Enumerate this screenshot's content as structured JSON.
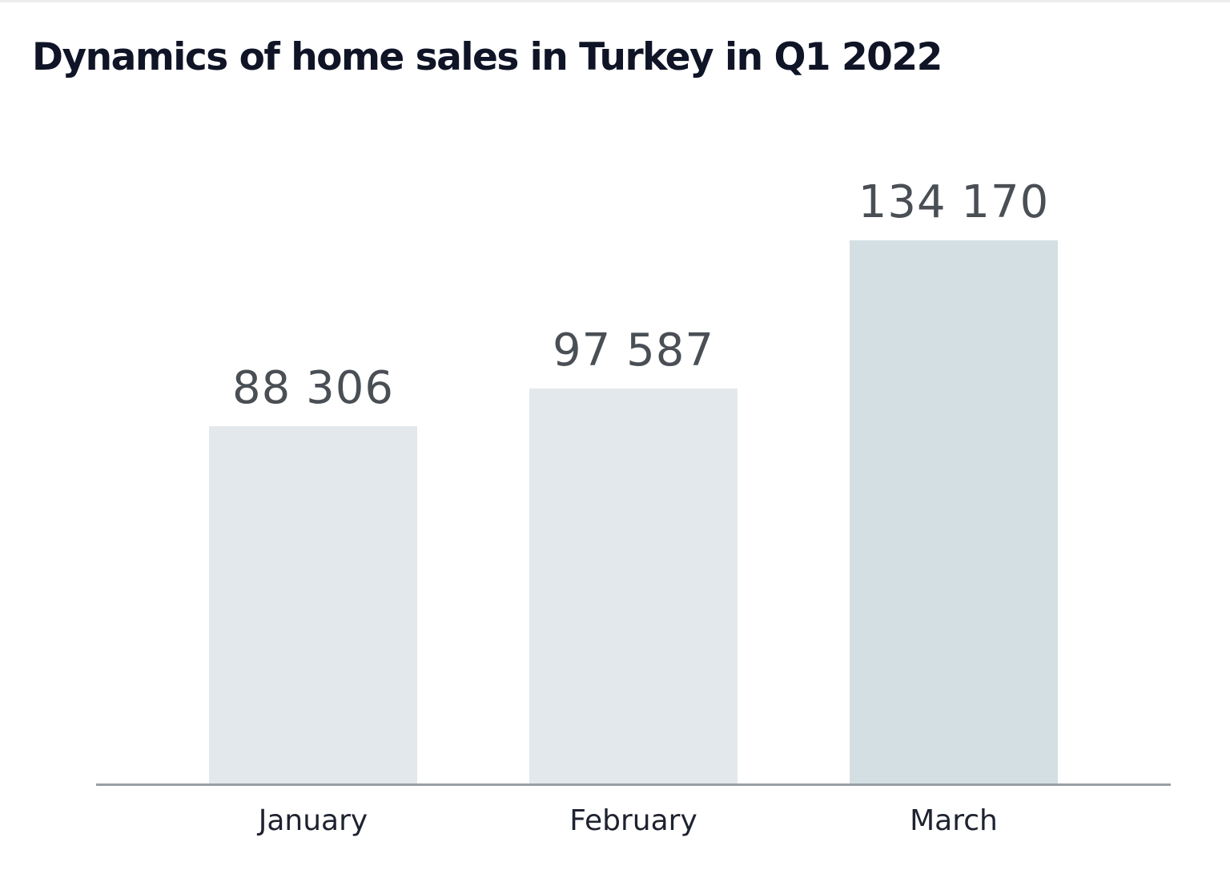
{
  "chart_data": {
    "type": "bar",
    "title": "Dynamics of home sales in Turkey in Q1 2022",
    "categories": [
      "January",
      "February",
      "March"
    ],
    "values": [
      88306,
      97587,
      134170
    ],
    "value_labels": [
      "88 306",
      "97 587",
      "134 170"
    ],
    "xlabel": "",
    "ylabel": "",
    "ylim": [
      0,
      160000
    ],
    "grid": false,
    "legend": null,
    "colors": [
      "#e3e8ec",
      "#e3e8ec",
      "#d4dfe3"
    ]
  },
  "axis": {
    "color": "#9a9fa4"
  }
}
